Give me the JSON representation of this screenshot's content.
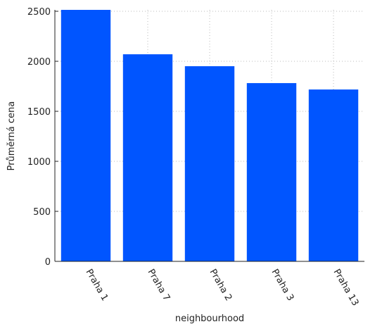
{
  "chart_data": {
    "type": "bar",
    "x_label": "neighbourhood",
    "y_label": "Průměrná cena",
    "categories": [
      "Praha 1",
      "Praha 7",
      "Praha 2",
      "Praha 3",
      "Praha 13"
    ],
    "values": [
      2514,
      2070,
      1951,
      1782,
      1718
    ],
    "color": "#0055ff",
    "ylim": [
      0,
      2514
    ],
    "yticks": [
      0,
      500,
      1000,
      1500,
      2000,
      2500
    ],
    "grid": true
  }
}
